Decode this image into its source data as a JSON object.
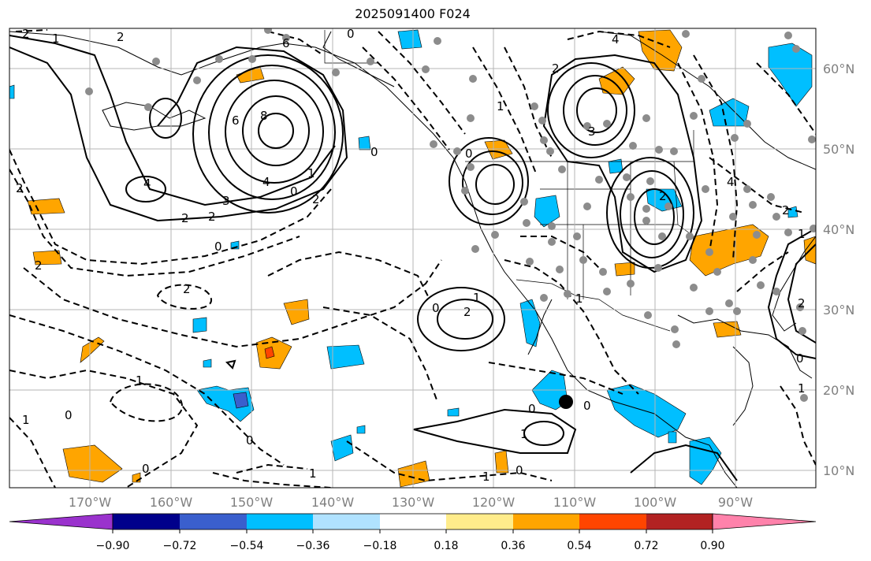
{
  "title": "2025091400 F024",
  "map": {
    "lon_labels": [
      "170°W",
      "160°W",
      "150°W",
      "140°W",
      "130°W",
      "120°W",
      "110°W",
      "100°W",
      "90°W"
    ],
    "lat_labels": [
      "60°N",
      "50°N",
      "40°N",
      "30°N",
      "20°N",
      "10°N"
    ],
    "contour_labels": [
      "2",
      "1",
      "2",
      "6",
      "8",
      "4",
      "3",
      "2",
      "2",
      "4",
      "0",
      "1",
      "0",
      "2",
      "2",
      "2",
      "0",
      "6",
      "4",
      "0",
      "3",
      "1",
      "2",
      "0",
      "4",
      "2",
      "1",
      "0",
      "1",
      "2",
      "0",
      "1",
      "1",
      "0",
      "1",
      "0",
      "1",
      "0",
      "0",
      "1",
      "2",
      "2",
      "0",
      "1",
      "2",
      "1",
      "0"
    ]
  },
  "colorbar": {
    "colors": [
      "#9a32cd",
      "#00008b",
      "#3a5fcd",
      "#00bfff",
      "#b0e2ff",
      "#ffffff",
      "#ffec8b",
      "#ffa500",
      "#ff4500",
      "#b22222",
      "#ff82ab"
    ],
    "tick_labels": [
      "−0.90",
      "−0.72",
      "−0.54",
      "−0.36",
      "−0.18",
      "0.18",
      "0.36",
      "0.54",
      "0.72",
      "0.90"
    ]
  }
}
